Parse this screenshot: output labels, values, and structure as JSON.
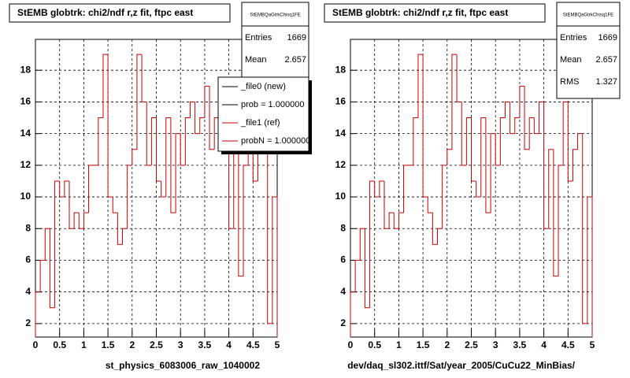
{
  "chart_data": [
    {
      "type": "histogram",
      "title": "StEMB globtrk: chi2/ndf r,z fit, ftpc east",
      "bins": [
        0,
        0.1,
        0.2,
        0.3,
        0.4,
        0.5,
        0.6,
        0.7,
        0.8,
        0.9,
        1,
        1.1,
        1.2,
        1.3,
        1.4,
        1.5,
        1.6,
        1.7,
        1.8,
        1.9,
        2,
        2.1,
        2.2,
        2.3,
        2.4,
        2.5,
        2.6,
        2.7,
        2.8,
        2.9,
        3,
        3.1,
        3.2,
        3.3,
        3.4,
        3.5,
        3.6,
        3.7,
        3.8,
        3.9,
        4,
        4.1,
        4.2,
        4.3,
        4.4,
        4.5,
        4.6,
        4.7,
        4.8,
        4.9,
        5
      ],
      "values": [
        4,
        6,
        8,
        3,
        11,
        10,
        11,
        8,
        9,
        8,
        9,
        12,
        12,
        15,
        19,
        10,
        9,
        7,
        8,
        12,
        13,
        19,
        16,
        12,
        15,
        11,
        10,
        15,
        9,
        14,
        12,
        15,
        16,
        14,
        15,
        17,
        13,
        15,
        14,
        16,
        8,
        13,
        5,
        12,
        16,
        11,
        13,
        14,
        2,
        10
      ],
      "color": "#cc0000",
      "xlim": [
        0,
        5
      ],
      "ylim": [
        1.15,
        19.95
      ],
      "xticks": [
        0,
        0.5,
        1,
        1.5,
        2,
        2.5,
        3,
        3.5,
        4,
        4.5,
        5
      ],
      "yticks": [
        2,
        4,
        6,
        8,
        10,
        12,
        14,
        16,
        18
      ],
      "grid": true,
      "xlabel": "st_physics_6083006_raw_1040002",
      "stats": {
        "name": "StEMBQaGtrkChisq1FE",
        "rows": [
          {
            "label": "Entries",
            "value": 1669
          },
          {
            "label": "Mean",
            "value": 2.657
          }
        ]
      },
      "legend": [
        {
          "label": "_file0 (new)",
          "color": "#000000"
        },
        {
          "label": "prob = 1.000000",
          "color": "#000000"
        },
        {
          "label": "_file1 (ref)",
          "color": "#cc0000"
        },
        {
          "label": "probN = 1.000000",
          "color": "#cc0000"
        }
      ]
    },
    {
      "type": "histogram",
      "title": "StEMB globtrk: chi2/ndf r,z fit, ftpc east",
      "bins": [
        0,
        0.1,
        0.2,
        0.3,
        0.4,
        0.5,
        0.6,
        0.7,
        0.8,
        0.9,
        1,
        1.1,
        1.2,
        1.3,
        1.4,
        1.5,
        1.6,
        1.7,
        1.8,
        1.9,
        2,
        2.1,
        2.2,
        2.3,
        2.4,
        2.5,
        2.6,
        2.7,
        2.8,
        2.9,
        3,
        3.1,
        3.2,
        3.3,
        3.4,
        3.5,
        3.6,
        3.7,
        3.8,
        3.9,
        4,
        4.1,
        4.2,
        4.3,
        4.4,
        4.5,
        4.6,
        4.7,
        4.8,
        4.9,
        5
      ],
      "values": [
        4,
        6,
        8,
        3,
        11,
        10,
        11,
        8,
        9,
        8,
        9,
        12,
        12,
        15,
        19,
        10,
        9,
        7,
        8,
        12,
        13,
        19,
        16,
        12,
        15,
        11,
        10,
        15,
        9,
        14,
        12,
        15,
        16,
        14,
        15,
        17,
        13,
        15,
        14,
        16,
        8,
        13,
        5,
        12,
        16,
        11,
        13,
        14,
        2,
        10
      ],
      "color": "#cc0000",
      "xlim": [
        0,
        5
      ],
      "ylim": [
        1.15,
        19.95
      ],
      "xticks": [
        0,
        0.5,
        1,
        1.5,
        2,
        2.5,
        3,
        3.5,
        4,
        4.5,
        5
      ],
      "yticks": [
        2,
        4,
        6,
        8,
        10,
        12,
        14,
        16,
        18
      ],
      "grid": true,
      "xlabel": "dev/daq_sl302.ittf/Sat/year_2005/CuCu22_MinBias/",
      "stats": {
        "name": "StEMBQaGtrkChisq1FE",
        "rows": [
          {
            "label": "Entries",
            "value": 1669
          },
          {
            "label": "Mean",
            "value": 2.657
          },
          {
            "label": "RMS",
            "value": 1.327
          }
        ]
      }
    }
  ]
}
